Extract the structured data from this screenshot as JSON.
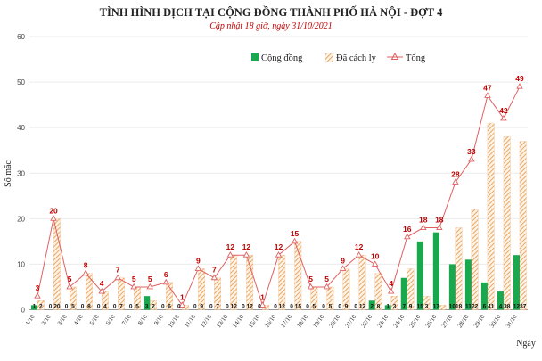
{
  "chart_data": {
    "type": "bar",
    "title": "TÌNH HÌNH DỊCH TẠI CỘNG ĐỒNG THÀNH PHỐ HÀ NỘI - ĐỢT 4",
    "subtitle": "Cập nhật 18 giờ, ngày 31/10/2021",
    "xlabel": "Ngày",
    "ylabel": "Số mắc",
    "ylim": [
      0,
      60
    ],
    "yticks": [
      "0",
      "10",
      "20",
      "30",
      "40",
      "50",
      "60"
    ],
    "legend_placement": "top",
    "categories": [
      "1/10",
      "2/10",
      "3/10",
      "4/10",
      "5/10",
      "6/10",
      "7/10",
      "8/10",
      "9/10",
      "10/10",
      "11/10",
      "12/10",
      "13/10",
      "14/10",
      "15/10",
      "16/10",
      "17/10",
      "18/10",
      "19/10",
      "20/10",
      "21/10",
      "22/10",
      "23/10",
      "24/10",
      "25/10",
      "26/10",
      "27/10",
      "28/10",
      "29/10",
      "30/10",
      "31/10"
    ],
    "series": [
      {
        "name": "Cộng đồng",
        "kind": "bar",
        "color": "#1aa84f",
        "values": [
          1,
          0,
          0,
          0,
          0,
          0,
          0,
          3,
          0,
          0,
          0,
          0,
          0,
          0,
          0,
          0,
          0,
          0,
          0,
          0,
          0,
          2,
          1,
          7,
          15,
          17,
          10,
          11,
          6,
          4,
          12
        ]
      },
      {
        "name": "Đã cách ly",
        "kind": "bar",
        "pattern": "hatched",
        "color": "#f0b67a",
        "values": [
          2,
          20,
          5,
          8,
          4,
          7,
          5,
          2,
          6,
          1,
          9,
          7,
          12,
          12,
          1,
          12,
          15,
          5,
          5,
          9,
          12,
          8,
          3,
          9,
          3,
          1,
          18,
          22,
          41,
          38,
          37
        ]
      },
      {
        "name": "Tổng",
        "kind": "line",
        "color": "#e06060",
        "values": [
          3,
          20,
          5,
          8,
          4,
          7,
          5,
          5,
          6,
          1,
          9,
          7,
          12,
          12,
          1,
          12,
          15,
          5,
          5,
          9,
          12,
          10,
          4,
          16,
          18,
          18,
          28,
          33,
          47,
          42,
          49
        ]
      }
    ]
  }
}
